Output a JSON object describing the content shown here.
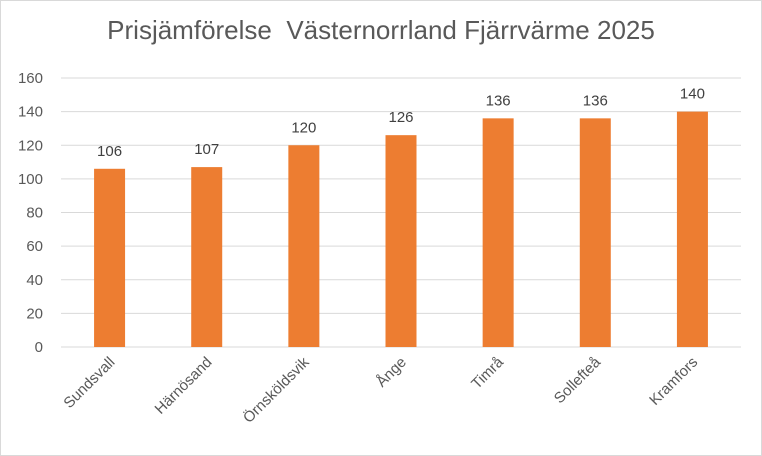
{
  "chart_data": {
    "type": "bar",
    "title": "Prisjämförelse  Västernorrland Fjärrvärme 2025",
    "xlabel": "",
    "ylabel": "",
    "categories": [
      "Sundsvall",
      "Härnösand",
      "Örnsköldsvik",
      "Ånge",
      "Timrå",
      "Sollefteå",
      "Kramfors"
    ],
    "values": [
      106,
      107,
      120,
      126,
      136,
      136,
      140
    ],
    "data_labels": [
      "106",
      "107",
      "120",
      "126",
      "136",
      "136",
      "140"
    ],
    "ylim": [
      0,
      160
    ],
    "yticks": [
      0,
      20,
      40,
      60,
      80,
      100,
      120,
      140,
      160
    ],
    "ytick_labels": [
      "0",
      "20",
      "40",
      "60",
      "80",
      "100",
      "120",
      "140",
      "160"
    ],
    "bar_color": "#ED7D31",
    "grid": true,
    "legend": "none"
  }
}
